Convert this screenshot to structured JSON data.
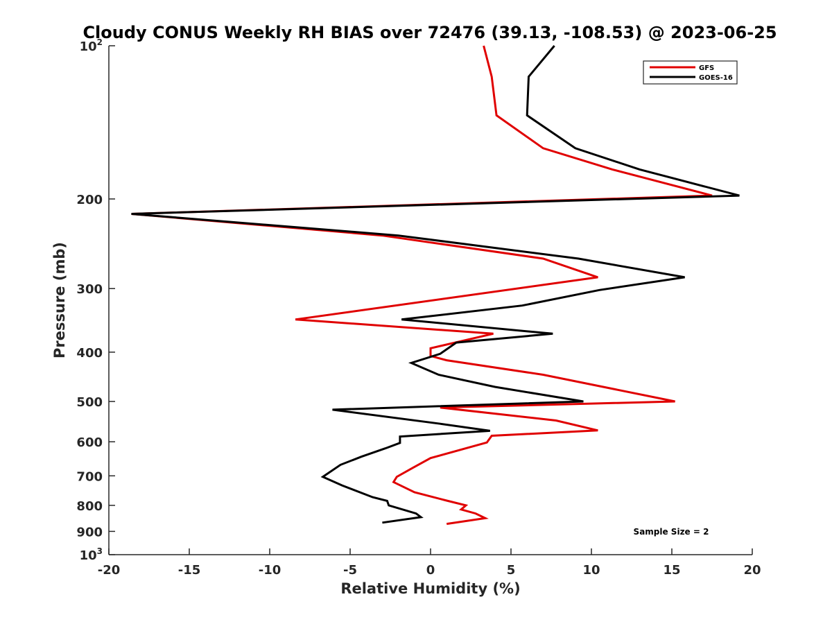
{
  "chart_data": {
    "type": "line",
    "title": "Cloudy CONUS Weekly RH BIAS over 72476 (39.13, -108.53) @ 2023-06-25",
    "xlabel": "Relative Humidity (%)",
    "ylabel": "Pressure (mb)",
    "xlim": [
      -20,
      20
    ],
    "ylim": [
      1000,
      100
    ],
    "y_scale": "log",
    "y_reversed": true,
    "grid": false,
    "xticks": [
      -20,
      -15,
      -10,
      -5,
      0,
      5,
      10,
      15,
      20
    ],
    "xtick_labels": [
      "-20",
      "-15",
      "-10",
      "-5",
      "0",
      "5",
      "10",
      "15",
      "20"
    ],
    "yticks": [
      {
        "value": 100,
        "base": "10",
        "sup": "2"
      },
      {
        "value": 200,
        "base": "200",
        "sup": ""
      },
      {
        "value": 300,
        "base": "300",
        "sup": ""
      },
      {
        "value": 400,
        "base": "400",
        "sup": ""
      },
      {
        "value": 500,
        "base": "500",
        "sup": ""
      },
      {
        "value": 600,
        "base": "600",
        "sup": ""
      },
      {
        "value": 700,
        "base": "700",
        "sup": ""
      },
      {
        "value": 800,
        "base": "800",
        "sup": ""
      },
      {
        "value": 900,
        "base": "900",
        "sup": ""
      },
      {
        "value": 1000,
        "base": "10",
        "sup": "3"
      }
    ],
    "legend": {
      "placement": "top-right"
    },
    "annotation": "Sample Size = 2",
    "series": [
      {
        "name": "GFS",
        "color": "#e00000",
        "points": [
          [
            3.3,
            100
          ],
          [
            3.8,
            115
          ],
          [
            4.1,
            137
          ],
          [
            7.0,
            159
          ],
          [
            11.3,
            175
          ],
          [
            17.5,
            197
          ],
          [
            -18.6,
            214
          ],
          [
            -3.0,
            236
          ],
          [
            7.0,
            262
          ],
          [
            10.4,
            285
          ],
          [
            -8.4,
            345
          ],
          [
            3.9,
            368
          ],
          [
            0.0,
            393
          ],
          [
            0.0,
            407
          ],
          [
            1.0,
            415
          ],
          [
            7.0,
            443
          ],
          [
            15.2,
            500
          ],
          [
            0.6,
            514
          ],
          [
            7.8,
            545
          ],
          [
            10.4,
            570
          ],
          [
            3.8,
            584
          ],
          [
            3.5,
            602
          ],
          [
            0.0,
            646
          ],
          [
            -1.1,
            675
          ],
          [
            -2.1,
            703
          ],
          [
            -2.3,
            720
          ],
          [
            -1.0,
            754
          ],
          [
            1.0,
            783
          ],
          [
            2.2,
            800
          ],
          [
            1.9,
            815
          ],
          [
            2.8,
            830
          ],
          [
            3.4,
            848
          ],
          [
            1.0,
            870
          ]
        ]
      },
      {
        "name": "GOES-16",
        "color": "#000000",
        "points": [
          [
            7.7,
            100
          ],
          [
            6.1,
            115
          ],
          [
            6.0,
            137
          ],
          [
            9.0,
            159
          ],
          [
            13.0,
            175
          ],
          [
            19.2,
            197
          ],
          [
            -18.6,
            214
          ],
          [
            -2.0,
            236
          ],
          [
            9.2,
            262
          ],
          [
            15.8,
            285
          ],
          [
            10.5,
            302
          ],
          [
            5.7,
            324
          ],
          [
            -1.8,
            345
          ],
          [
            7.6,
            368
          ],
          [
            1.6,
            383
          ],
          [
            0.6,
            403
          ],
          [
            -1.2,
            420
          ],
          [
            0.5,
            443
          ],
          [
            4.0,
            468
          ],
          [
            9.5,
            500
          ],
          [
            -6.1,
            519
          ],
          [
            0.6,
            553
          ],
          [
            3.7,
            571
          ],
          [
            -1.9,
            586
          ],
          [
            -1.9,
            603
          ],
          [
            -2.8,
            618
          ],
          [
            -4.3,
            642
          ],
          [
            -5.6,
            666
          ],
          [
            -6.7,
            703
          ],
          [
            -5.5,
            731
          ],
          [
            -3.6,
            771
          ],
          [
            -2.7,
            784
          ],
          [
            -2.6,
            800
          ],
          [
            -0.9,
            830
          ],
          [
            -0.6,
            844
          ],
          [
            -3.0,
            865
          ]
        ]
      }
    ]
  }
}
